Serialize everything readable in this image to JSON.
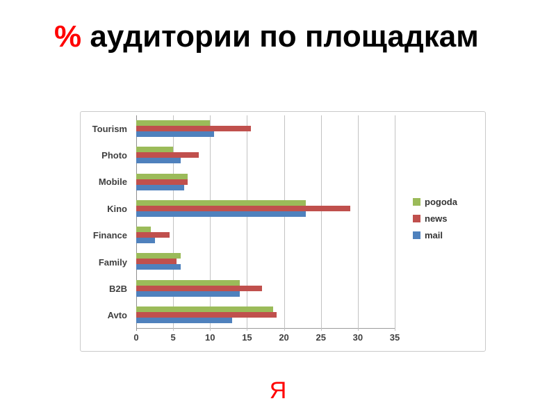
{
  "slide": {
    "title_accent": "%",
    "title_text": " аудитории по площадкам",
    "footer_letter": "Я"
  },
  "colors": {
    "accent_red": "#ff0000",
    "series_pogoda": "#9bbb59",
    "series_news": "#c0504d",
    "series_mail": "#4f81bd",
    "gridline": "#c2c2c2",
    "axis": "#8e8e8e"
  },
  "chart_data": {
    "type": "bar",
    "orientation": "horizontal",
    "title": "% аудитории по площадкам",
    "categories": [
      "Tourism",
      "Photo",
      "Mobile",
      "Kino",
      "Finance",
      "Family",
      "B2B",
      "Avto"
    ],
    "series": [
      {
        "name": "pogoda",
        "color": "#9bbb59",
        "values": [
          10,
          5,
          7,
          23,
          2,
          6,
          14,
          18.5
        ]
      },
      {
        "name": "news",
        "color": "#c0504d",
        "values": [
          15.5,
          8.5,
          7,
          29,
          4.5,
          5.5,
          17,
          19
        ]
      },
      {
        "name": "mail",
        "color": "#4f81bd",
        "values": [
          10.5,
          6,
          6.5,
          23,
          2.5,
          6,
          14,
          13
        ]
      }
    ],
    "xlim": [
      0,
      35
    ],
    "x_ticks": [
      0,
      5,
      10,
      15,
      20,
      25,
      30,
      35
    ],
    "xlabel": "",
    "ylabel": "",
    "grid": true,
    "legend_position": "right",
    "legend_entries": [
      "pogoda",
      "news",
      "mail"
    ]
  }
}
